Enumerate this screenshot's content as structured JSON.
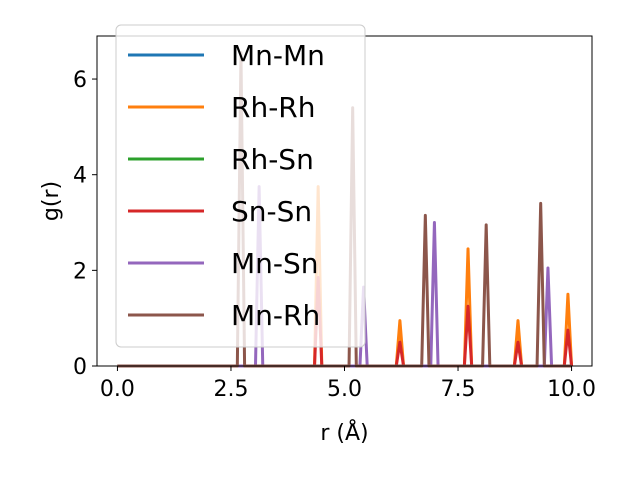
{
  "chart_data": {
    "type": "line",
    "xlabel": "r (Å)",
    "ylabel": "g(r)",
    "xlim": [
      -0.45,
      10.45
    ],
    "ylim": [
      0,
      6.9
    ],
    "xticks": [
      "0.0",
      "2.5",
      "5.0",
      "7.5",
      "10.0"
    ],
    "yticks": [
      "0",
      "2",
      "4",
      "6"
    ],
    "grid": false,
    "legend_position": "upper-left",
    "series": [
      {
        "name": "Mn-Mn",
        "color": "#1f77b4",
        "peaks": []
      },
      {
        "name": "Rh-Rh",
        "color": "#ff7f0e",
        "peaks": [
          [
            4.42,
            3.75
          ],
          [
            6.22,
            0.95
          ],
          [
            7.72,
            2.45
          ],
          [
            8.82,
            0.95
          ],
          [
            9.92,
            1.5
          ]
        ]
      },
      {
        "name": "Rh-Sn",
        "color": "#2ca02c",
        "peaks": []
      },
      {
        "name": "Sn-Sn",
        "color": "#d62728",
        "peaks": [
          [
            4.42,
            1.85
          ],
          [
            6.22,
            0.5
          ],
          [
            7.72,
            1.25
          ],
          [
            8.82,
            0.5
          ],
          [
            9.92,
            0.75
          ]
        ]
      },
      {
        "name": "Mn-Sn",
        "color": "#9467bd",
        "peaks": [
          [
            3.12,
            3.75
          ],
          [
            5.42,
            1.65
          ],
          [
            6.98,
            3.0
          ],
          [
            9.48,
            2.05
          ]
        ]
      },
      {
        "name": "Mn-Rh",
        "color": "#8c564b",
        "peaks": [
          [
            2.72,
            6.55
          ],
          [
            5.18,
            5.4
          ],
          [
            6.78,
            3.15
          ],
          [
            8.12,
            2.95
          ],
          [
            9.32,
            3.4
          ]
        ]
      }
    ]
  }
}
